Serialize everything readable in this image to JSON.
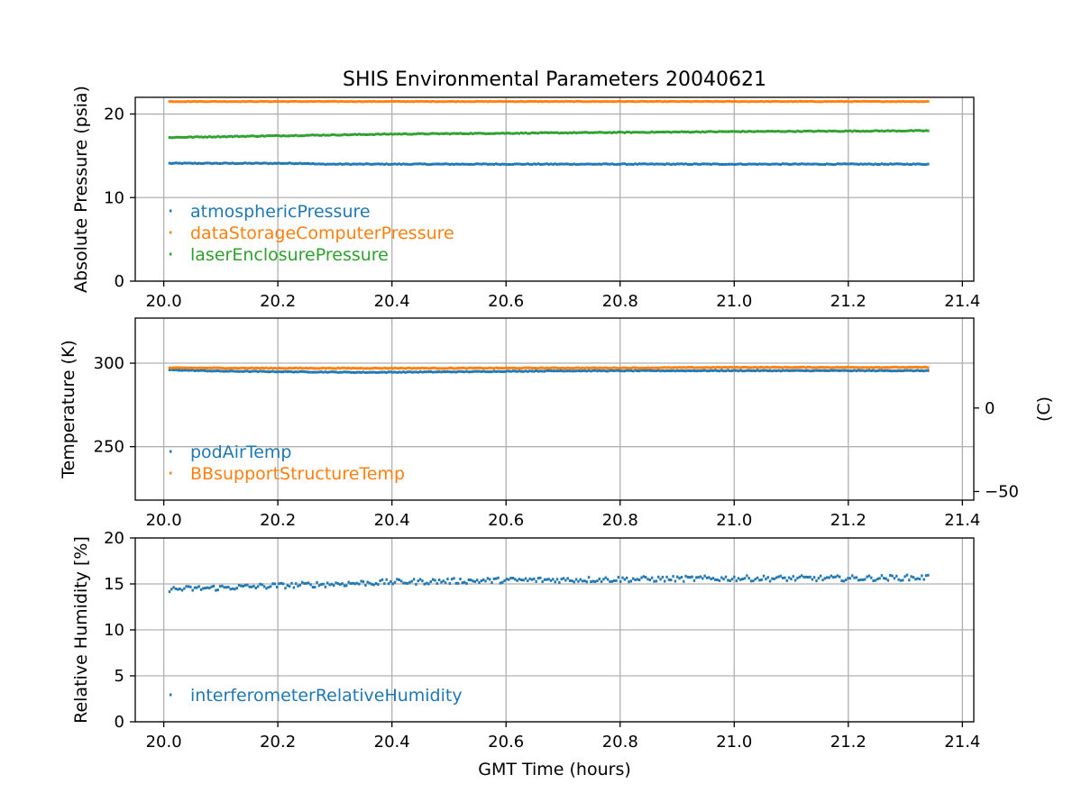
{
  "figure": {
    "title": "SHIS Environmental Parameters 20040621",
    "xlabel": "GMT Time (hours)"
  },
  "colors": {
    "blue": "#1f77b4",
    "orange": "#ff7f0e",
    "green": "#2ca02c"
  },
  "chart_data": [
    {
      "type": "scatter",
      "id": "pressure",
      "title": "SHIS Environmental Parameters 20040621",
      "xlabel": "",
      "ylabel": "Absolute Pressure (psia)",
      "xlim": [
        19.95,
        21.42
      ],
      "ylim": [
        0,
        22
      ],
      "x_ticks": [
        20.0,
        20.2,
        20.4,
        20.6,
        20.8,
        21.0,
        21.2,
        21.4
      ],
      "x_tick_labels": [
        "20.0",
        "20.2",
        "20.4",
        "20.6",
        "20.8",
        "21.0",
        "21.2",
        "21.4"
      ],
      "y_ticks": [
        0,
        10,
        20
      ],
      "y_tick_labels": [
        "0",
        "10",
        "20"
      ],
      "grid": true,
      "legend_position": "lower-left",
      "series": [
        {
          "name": "atmosphericPressure",
          "color": "#1f77b4",
          "noise": 0.05,
          "x": [
            20.01,
            20.25,
            20.27,
            20.5,
            21.0,
            21.34
          ],
          "y": [
            14.1,
            14.1,
            14.0,
            14.0,
            14.0,
            14.0
          ]
        },
        {
          "name": "dataStorageComputerPressure",
          "color": "#ff7f0e",
          "noise": 0.03,
          "x": [
            20.01,
            21.34
          ],
          "y": [
            21.5,
            21.5
          ]
        },
        {
          "name": "laserEnclosurePressure",
          "color": "#2ca02c",
          "noise": 0.05,
          "x": [
            20.01,
            20.2,
            20.4,
            20.6,
            20.8,
            21.0,
            21.34
          ],
          "y": [
            17.2,
            17.4,
            17.6,
            17.7,
            17.8,
            17.9,
            18.0
          ]
        }
      ]
    },
    {
      "type": "scatter",
      "id": "temperature",
      "xlabel": "",
      "ylabel": "Temperature (K)",
      "y2label": "(C)",
      "xlim": [
        19.95,
        21.42
      ],
      "ylim": [
        218,
        327
      ],
      "y2lim": [
        -55.15,
        53.85
      ],
      "x_ticks": [
        20.0,
        20.2,
        20.4,
        20.6,
        20.8,
        21.0,
        21.2,
        21.4
      ],
      "x_tick_labels": [
        "20.0",
        "20.2",
        "20.4",
        "20.6",
        "20.8",
        "21.0",
        "21.2",
        "21.4"
      ],
      "y_ticks": [
        250,
        300
      ],
      "y_tick_labels": [
        "250",
        "300"
      ],
      "y2_ticks": [
        -50,
        0
      ],
      "y2_tick_labels": [
        "−50",
        "0"
      ],
      "grid": true,
      "legend_position": "lower-left",
      "series": [
        {
          "name": "podAirTemp",
          "color": "#1f77b4",
          "noise": 0.2,
          "x": [
            20.01,
            20.1,
            20.35,
            20.5,
            20.7,
            21.0,
            21.34
          ],
          "y": [
            296.0,
            295.2,
            294.5,
            294.8,
            295.4,
            295.5,
            295.5
          ]
        },
        {
          "name": "BBsupportStructureTemp",
          "color": "#ff7f0e",
          "noise": 0.2,
          "x": [
            20.01,
            20.2,
            20.5,
            20.83,
            21.0,
            21.34
          ],
          "y": [
            297.2,
            297.0,
            297.0,
            297.2,
            297.5,
            297.5
          ]
        }
      ]
    },
    {
      "type": "scatter",
      "id": "humidity",
      "xlabel": "GMT Time (hours)",
      "ylabel": "Relative Humidity [%]",
      "xlim": [
        19.95,
        21.42
      ],
      "ylim": [
        0,
        20
      ],
      "x_ticks": [
        20.0,
        20.2,
        20.4,
        20.6,
        20.8,
        21.0,
        21.2,
        21.4
      ],
      "x_tick_labels": [
        "20.0",
        "20.2",
        "20.4",
        "20.6",
        "20.8",
        "21.0",
        "21.2",
        "21.4"
      ],
      "y_ticks": [
        0,
        5,
        10,
        15,
        20
      ],
      "y_tick_labels": [
        "0",
        "5",
        "10",
        "15",
        "20"
      ],
      "grid": true,
      "legend_position": "lower-left",
      "series": [
        {
          "name": "interferometerRelativeHumidity",
          "color": "#1f77b4",
          "noise": 0.3,
          "x": [
            20.01,
            20.2,
            20.4,
            20.6,
            20.8,
            21.0,
            21.2,
            21.34
          ],
          "y": [
            14.4,
            14.8,
            15.2,
            15.4,
            15.5,
            15.6,
            15.6,
            15.7
          ]
        }
      ]
    }
  ]
}
